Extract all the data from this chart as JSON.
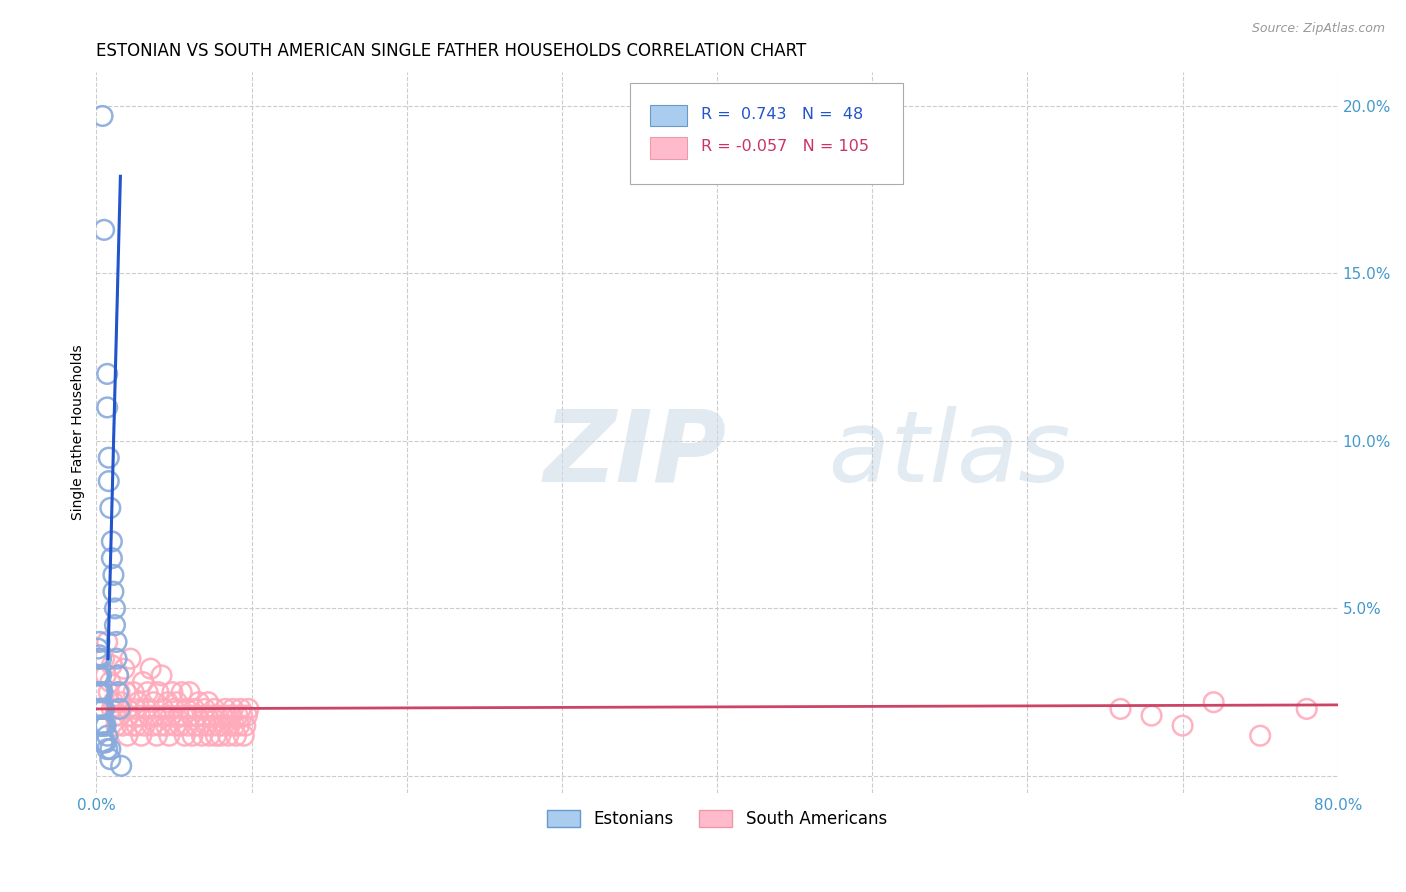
{
  "title": "ESTONIAN VS SOUTH AMERICAN SINGLE FATHER HOUSEHOLDS CORRELATION CHART",
  "source": "Source: ZipAtlas.com",
  "ylabel": "Single Father Households",
  "watermark_zip": "ZIP",
  "watermark_atlas": "atlas",
  "xlim": [
    0.0,
    0.8
  ],
  "ylim": [
    -0.005,
    0.21
  ],
  "xticks": [
    0.0,
    0.1,
    0.2,
    0.3,
    0.4,
    0.5,
    0.6,
    0.7,
    0.8
  ],
  "yticks": [
    0.0,
    0.05,
    0.1,
    0.15,
    0.2
  ],
  "blue_color": "#88aadd",
  "blue_edge_color": "#5577bb",
  "pink_color": "#ffaabb",
  "pink_edge_color": "#ee7799",
  "blue_line_color": "#2255cc",
  "pink_line_color": "#cc4466",
  "grid_color": "#cccccc",
  "background_color": "#ffffff",
  "title_fontsize": 12,
  "label_fontsize": 10,
  "tick_fontsize": 11,
  "blue_x": [
    0.004,
    0.005,
    0.007,
    0.007,
    0.008,
    0.008,
    0.009,
    0.01,
    0.01,
    0.011,
    0.011,
    0.012,
    0.012,
    0.013,
    0.013,
    0.014,
    0.014,
    0.015,
    0.001,
    0.001,
    0.001,
    0.001,
    0.001,
    0.002,
    0.002,
    0.002,
    0.002,
    0.002,
    0.002,
    0.003,
    0.003,
    0.003,
    0.003,
    0.003,
    0.004,
    0.004,
    0.004,
    0.004,
    0.005,
    0.005,
    0.005,
    0.006,
    0.006,
    0.007,
    0.007,
    0.009,
    0.009,
    0.016
  ],
  "blue_y": [
    0.197,
    0.163,
    0.12,
    0.11,
    0.088,
    0.095,
    0.08,
    0.07,
    0.065,
    0.06,
    0.055,
    0.05,
    0.045,
    0.04,
    0.035,
    0.03,
    0.025,
    0.02,
    0.038,
    0.035,
    0.03,
    0.025,
    0.02,
    0.04,
    0.036,
    0.03,
    0.025,
    0.02,
    0.015,
    0.035,
    0.03,
    0.025,
    0.02,
    0.015,
    0.025,
    0.02,
    0.015,
    0.01,
    0.02,
    0.015,
    0.01,
    0.015,
    0.01,
    0.012,
    0.008,
    0.008,
    0.005,
    0.003
  ],
  "pink_x": [
    0.005,
    0.006,
    0.007,
    0.008,
    0.009,
    0.01,
    0.01,
    0.011,
    0.012,
    0.013,
    0.014,
    0.015,
    0.015,
    0.016,
    0.017,
    0.018,
    0.019,
    0.02,
    0.02,
    0.021,
    0.022,
    0.023,
    0.024,
    0.025,
    0.026,
    0.027,
    0.028,
    0.029,
    0.03,
    0.031,
    0.032,
    0.033,
    0.034,
    0.035,
    0.036,
    0.037,
    0.038,
    0.039,
    0.04,
    0.041,
    0.042,
    0.043,
    0.044,
    0.045,
    0.046,
    0.047,
    0.048,
    0.049,
    0.05,
    0.051,
    0.052,
    0.053,
    0.054,
    0.055,
    0.056,
    0.057,
    0.058,
    0.059,
    0.06,
    0.061,
    0.062,
    0.063,
    0.064,
    0.065,
    0.066,
    0.067,
    0.068,
    0.069,
    0.07,
    0.071,
    0.072,
    0.073,
    0.074,
    0.075,
    0.076,
    0.077,
    0.078,
    0.079,
    0.08,
    0.081,
    0.082,
    0.083,
    0.084,
    0.085,
    0.086,
    0.087,
    0.088,
    0.089,
    0.09,
    0.091,
    0.092,
    0.093,
    0.094,
    0.095,
    0.096,
    0.097,
    0.098,
    0.66,
    0.68,
    0.7,
    0.72,
    0.75,
    0.78
  ],
  "pink_y": [
    0.035,
    0.03,
    0.04,
    0.025,
    0.028,
    0.033,
    0.02,
    0.022,
    0.018,
    0.015,
    0.03,
    0.025,
    0.018,
    0.022,
    0.015,
    0.032,
    0.025,
    0.02,
    0.012,
    0.018,
    0.035,
    0.015,
    0.025,
    0.02,
    0.015,
    0.022,
    0.018,
    0.012,
    0.028,
    0.015,
    0.02,
    0.025,
    0.018,
    0.032,
    0.015,
    0.022,
    0.018,
    0.012,
    0.025,
    0.015,
    0.03,
    0.02,
    0.018,
    0.015,
    0.022,
    0.012,
    0.018,
    0.025,
    0.02,
    0.015,
    0.022,
    0.018,
    0.015,
    0.025,
    0.018,
    0.012,
    0.02,
    0.015,
    0.025,
    0.018,
    0.012,
    0.02,
    0.015,
    0.018,
    0.022,
    0.015,
    0.012,
    0.018,
    0.02,
    0.015,
    0.022,
    0.012,
    0.018,
    0.015,
    0.02,
    0.012,
    0.018,
    0.015,
    0.012,
    0.018,
    0.015,
    0.02,
    0.018,
    0.012,
    0.015,
    0.018,
    0.02,
    0.015,
    0.012,
    0.018,
    0.015,
    0.02,
    0.018,
    0.012,
    0.015,
    0.018,
    0.02,
    0.02,
    0.018,
    0.015,
    0.022,
    0.012,
    0.02
  ]
}
